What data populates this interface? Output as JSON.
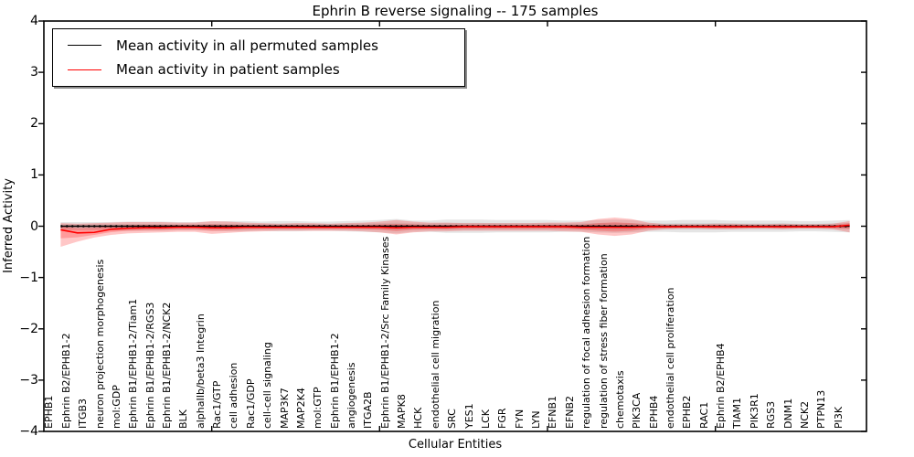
{
  "title": "Ephrin B reverse signaling -- 175 samples",
  "xlabel": "Cellular Entities",
  "ylabel": "Inferred Activity",
  "legend": {
    "items": [
      {
        "label": "Mean activity in all permuted samples",
        "color": "#000000"
      },
      {
        "label": "Mean activity in patient samples",
        "color": "#ff0000"
      }
    ]
  },
  "colors": {
    "permuted_line": "#000000",
    "patient_line": "#ff0000",
    "patient_band": "#ff0000",
    "permuted_band": "#aaaaaa",
    "frame": "#000000",
    "background": "#ffffff"
  },
  "chart_data": {
    "type": "line",
    "title": "Ephrin B reverse signaling -- 175 samples",
    "xlabel": "Cellular Entities",
    "ylabel": "Inferred Activity",
    "ylim": [
      -4,
      4
    ],
    "xlim": [
      0,
      49
    ],
    "grid": false,
    "legend_position": "upper left",
    "yticks": {
      "values": [
        4,
        3,
        2,
        1,
        0,
        -1,
        -2,
        -3,
        -4
      ],
      "labels": [
        "4",
        "3",
        "2",
        "1",
        "0",
        "−1",
        "−2",
        "−3",
        "−4"
      ]
    },
    "xtick_positions_unlabeled": [
      10,
      20,
      30,
      40
    ],
    "categories": [
      "EPHB1",
      "Ephrin B2/EPHB1-2",
      "ITGB3",
      "neuron projection morphogenesis",
      "mol:GDP",
      "Ephrin B1/EPHB1-2/Tiam1",
      "Ephrin B1/EPHB1-2/RGS3",
      "Ephrin B1/EPHB1-2/NCK2",
      "BLK",
      "alphaIIb/beta3 Integrin",
      "Rac1/GTP",
      "cell adhesion",
      "Rac1/GDP",
      "cell-cell signaling",
      "MAP3K7",
      "MAP2K4",
      "mol:GTP",
      "Ephrin B1/EPHB1-2",
      "angiogenesis",
      "ITGA2B",
      "Ephrin B1/EPHB1-2/Src Family Kinases",
      "MAPK8",
      "HCK",
      "endothelial cell migration",
      "SRC",
      "YES1",
      "LCK",
      "FGR",
      "FYN",
      "LYN",
      "EFNB1",
      "EFNB2",
      "regulation of focal adhesion formation",
      "regulation of stress fiber formation",
      "chemotaxis",
      "PIK3CA",
      "EPHB4",
      "endothelial cell proliferation",
      "EPHB2",
      "RAC1",
      "Ephrin B2/EPHB4",
      "TIAM1",
      "PIK3R1",
      "RGS3",
      "DNM1",
      "NCK2",
      "PTPN13",
      "PI3K"
    ],
    "series": [
      {
        "name": "Mean activity in all permuted samples",
        "color": "#000000",
        "style": "solid-with-dots",
        "values": [
          0,
          0,
          0,
          0,
          0,
          0,
          0,
          0,
          0,
          0,
          0,
          0,
          0,
          0,
          0,
          0,
          0,
          0,
          0,
          0,
          0,
          0,
          0,
          0,
          0,
          0,
          0,
          0,
          0,
          0,
          0,
          0,
          0,
          0,
          0,
          0,
          0,
          0,
          0,
          0,
          0,
          0,
          0,
          0,
          0,
          0,
          0,
          0
        ]
      },
      {
        "name": "Mean activity in patient samples",
        "color": "#ff0000",
        "style": "solid",
        "values": [
          -0.07,
          -0.13,
          -0.12,
          -0.06,
          -0.04,
          -0.03,
          -0.03,
          -0.02,
          -0.02,
          -0.03,
          -0.03,
          -0.02,
          -0.02,
          -0.02,
          -0.02,
          -0.02,
          -0.02,
          -0.02,
          -0.02,
          -0.02,
          -0.03,
          -0.02,
          -0.02,
          -0.02,
          -0.01,
          -0.01,
          -0.01,
          -0.01,
          -0.01,
          -0.01,
          -0.01,
          -0.02,
          -0.02,
          -0.02,
          -0.02,
          -0.01,
          -0.01,
          -0.01,
          -0.01,
          -0.01,
          -0.01,
          -0.01,
          -0.01,
          -0.01,
          -0.01,
          -0.01,
          -0.01,
          0.02
        ]
      }
    ],
    "bands": [
      {
        "name": "permuted-sample-range",
        "color": "#aaaaaa",
        "upper": [
          0.08,
          0.08,
          0.08,
          0.08,
          0.09,
          0.09,
          0.09,
          0.08,
          0.08,
          0.09,
          0.1,
          0.1,
          0.09,
          0.1,
          0.1,
          0.09,
          0.09,
          0.1,
          0.11,
          0.12,
          0.14,
          0.11,
          0.11,
          0.13,
          0.13,
          0.13,
          0.12,
          0.12,
          0.12,
          0.12,
          0.11,
          0.11,
          0.12,
          0.13,
          0.12,
          0.11,
          0.11,
          0.12,
          0.12,
          0.12,
          0.11,
          0.11,
          0.11,
          0.11,
          0.1,
          0.1,
          0.11,
          0.12
        ],
        "lower": [
          -0.08,
          -0.08,
          -0.08,
          -0.08,
          -0.09,
          -0.09,
          -0.09,
          -0.08,
          -0.08,
          -0.09,
          -0.1,
          -0.1,
          -0.09,
          -0.1,
          -0.1,
          -0.09,
          -0.09,
          -0.1,
          -0.11,
          -0.12,
          -0.14,
          -0.11,
          -0.11,
          -0.13,
          -0.13,
          -0.13,
          -0.12,
          -0.12,
          -0.12,
          -0.12,
          -0.11,
          -0.11,
          -0.12,
          -0.13,
          -0.12,
          -0.11,
          -0.11,
          -0.12,
          -0.12,
          -0.12,
          -0.11,
          -0.11,
          -0.11,
          -0.11,
          -0.1,
          -0.1,
          -0.11,
          -0.12
        ]
      },
      {
        "name": "patient-sample-range",
        "color": "#ff0000",
        "upper": [
          0.06,
          0.05,
          0.06,
          0.07,
          0.08,
          0.08,
          0.08,
          0.07,
          0.07,
          0.1,
          0.09,
          0.07,
          0.06,
          0.05,
          0.06,
          0.06,
          0.05,
          0.06,
          0.07,
          0.09,
          0.12,
          0.09,
          0.07,
          0.07,
          0.06,
          0.06,
          0.06,
          0.06,
          0.06,
          0.07,
          0.07,
          0.08,
          0.14,
          0.17,
          0.14,
          0.07,
          0.04,
          0.04,
          0.04,
          0.05,
          0.05,
          0.04,
          0.04,
          0.05,
          0.04,
          0.04,
          0.05,
          0.1
        ],
        "lower": [
          -0.4,
          -0.3,
          -0.22,
          -0.17,
          -0.14,
          -0.13,
          -0.12,
          -0.11,
          -0.11,
          -0.15,
          -0.13,
          -0.11,
          -0.1,
          -0.09,
          -0.09,
          -0.09,
          -0.09,
          -0.09,
          -0.1,
          -0.12,
          -0.16,
          -0.12,
          -0.1,
          -0.1,
          -0.09,
          -0.09,
          -0.09,
          -0.09,
          -0.09,
          -0.09,
          -0.1,
          -0.11,
          -0.16,
          -0.19,
          -0.16,
          -0.09,
          -0.06,
          -0.05,
          -0.05,
          -0.06,
          -0.06,
          -0.05,
          -0.05,
          -0.06,
          -0.05,
          -0.05,
          -0.06,
          -0.12
        ]
      }
    ]
  }
}
